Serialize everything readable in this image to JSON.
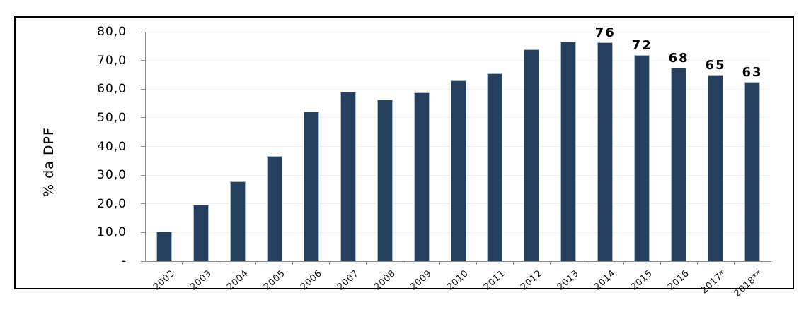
{
  "chart_data": {
    "type": "bar",
    "title": "",
    "xlabel": "",
    "ylabel": "% da DPF",
    "ylim": [
      0,
      80
    ],
    "grid": true,
    "legend": "none",
    "categories": [
      "2002",
      "2003",
      "2004",
      "2005",
      "2006",
      "2007",
      "2008",
      "2009",
      "2010",
      "2011",
      "2012",
      "2013",
      "2014",
      "2015",
      "2016",
      "2017*",
      "2018**"
    ],
    "values": [
      10.3,
      19.7,
      27.8,
      36.6,
      52.3,
      59.2,
      56.4,
      58.8,
      63.1,
      65.4,
      73.9,
      76.5,
      76.3,
      72.0,
      67.5,
      65.0,
      62.5
    ],
    "bar_labels": [
      "",
      "",
      "",
      "",
      "",
      "",
      "",
      "",
      "",
      "",
      "",
      "",
      "76",
      "72",
      "68",
      "65",
      "63"
    ],
    "y_ticks": [
      {
        "label": "80,0",
        "value": 80
      },
      {
        "label": "70,0",
        "value": 70
      },
      {
        "label": "60,0",
        "value": 60
      },
      {
        "label": "50,0",
        "value": 50
      },
      {
        "label": "40,0",
        "value": 40
      },
      {
        "label": "30,0",
        "value": 30
      },
      {
        "label": "20,0",
        "value": 20
      },
      {
        "label": "10,0",
        "value": 10
      },
      {
        "label": "-",
        "value": 0
      }
    ],
    "colors": {
      "bar_fill": "#24405E",
      "bar_border": "#A9BCCE",
      "axis": "#8C8C8C",
      "gridline": "#F2F2F2",
      "text": "#000000",
      "frame_border": "#000000",
      "background": "#FFFFFF"
    }
  }
}
